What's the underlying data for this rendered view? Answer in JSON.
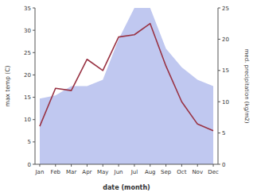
{
  "chart_data": {
    "type": "line",
    "categories": [
      "Jan",
      "Feb",
      "Mar",
      "Apr",
      "May",
      "Jun",
      "Jul",
      "Aug",
      "Sep",
      "Oct",
      "Nov",
      "Dec"
    ],
    "series": [
      {
        "type": "area",
        "color": "#c0c8f0",
        "axis": "y2",
        "values": [
          10.5,
          11.0,
          12.5,
          12.5,
          13.5,
          20.0,
          25.0,
          25.0,
          18.5,
          15.5,
          13.5,
          12.5
        ]
      },
      {
        "type": "line",
        "color": "#993344",
        "values": [
          8.5,
          17.0,
          16.5,
          23.5,
          21.0,
          28.5,
          29.0,
          31.5,
          22.0,
          14.0,
          9.0,
          7.5
        ]
      }
    ],
    "xlabel": "date (month)",
    "ylabel": "max temp (C)",
    "y2label": "med. precipitation (kg/m2)",
    "ylim": [
      0,
      35
    ],
    "yticks": [
      0,
      5,
      10,
      15,
      20,
      25,
      30,
      35
    ],
    "y2lim": [
      0,
      25
    ],
    "y2ticks": [
      0,
      5,
      10,
      15,
      20,
      25
    ],
    "grid": false
  }
}
